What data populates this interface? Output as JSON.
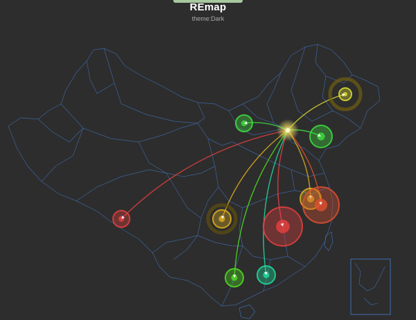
{
  "title": "REmap",
  "subtitle": "theme:Dark",
  "colors": {
    "background": "#2d2d2d",
    "province_border": "#3f6fb0",
    "glow_center": "#fff6a0"
  },
  "routes": [
    {
      "from": "beijing",
      "to": "harbin",
      "color": "#e0e030"
    },
    {
      "from": "beijing",
      "to": "hohhot",
      "color": "#40e040"
    },
    {
      "from": "beijing",
      "to": "shenyang",
      "color": "#40e040"
    },
    {
      "from": "beijing",
      "to": "lhasa",
      "color": "#e84040"
    },
    {
      "from": "beijing",
      "to": "chongqing",
      "color": "#e0b020"
    },
    {
      "from": "beijing",
      "to": "hefei",
      "color": "#e0b020"
    },
    {
      "from": "beijing",
      "to": "shanghai",
      "color": "#e05030"
    },
    {
      "from": "beijing",
      "to": "nanchang",
      "color": "#e84040"
    },
    {
      "from": "beijing",
      "to": "nanning",
      "color": "#50e020"
    },
    {
      "from": "beijing",
      "to": "guangzhou",
      "color": "#20e0a0"
    }
  ]
}
